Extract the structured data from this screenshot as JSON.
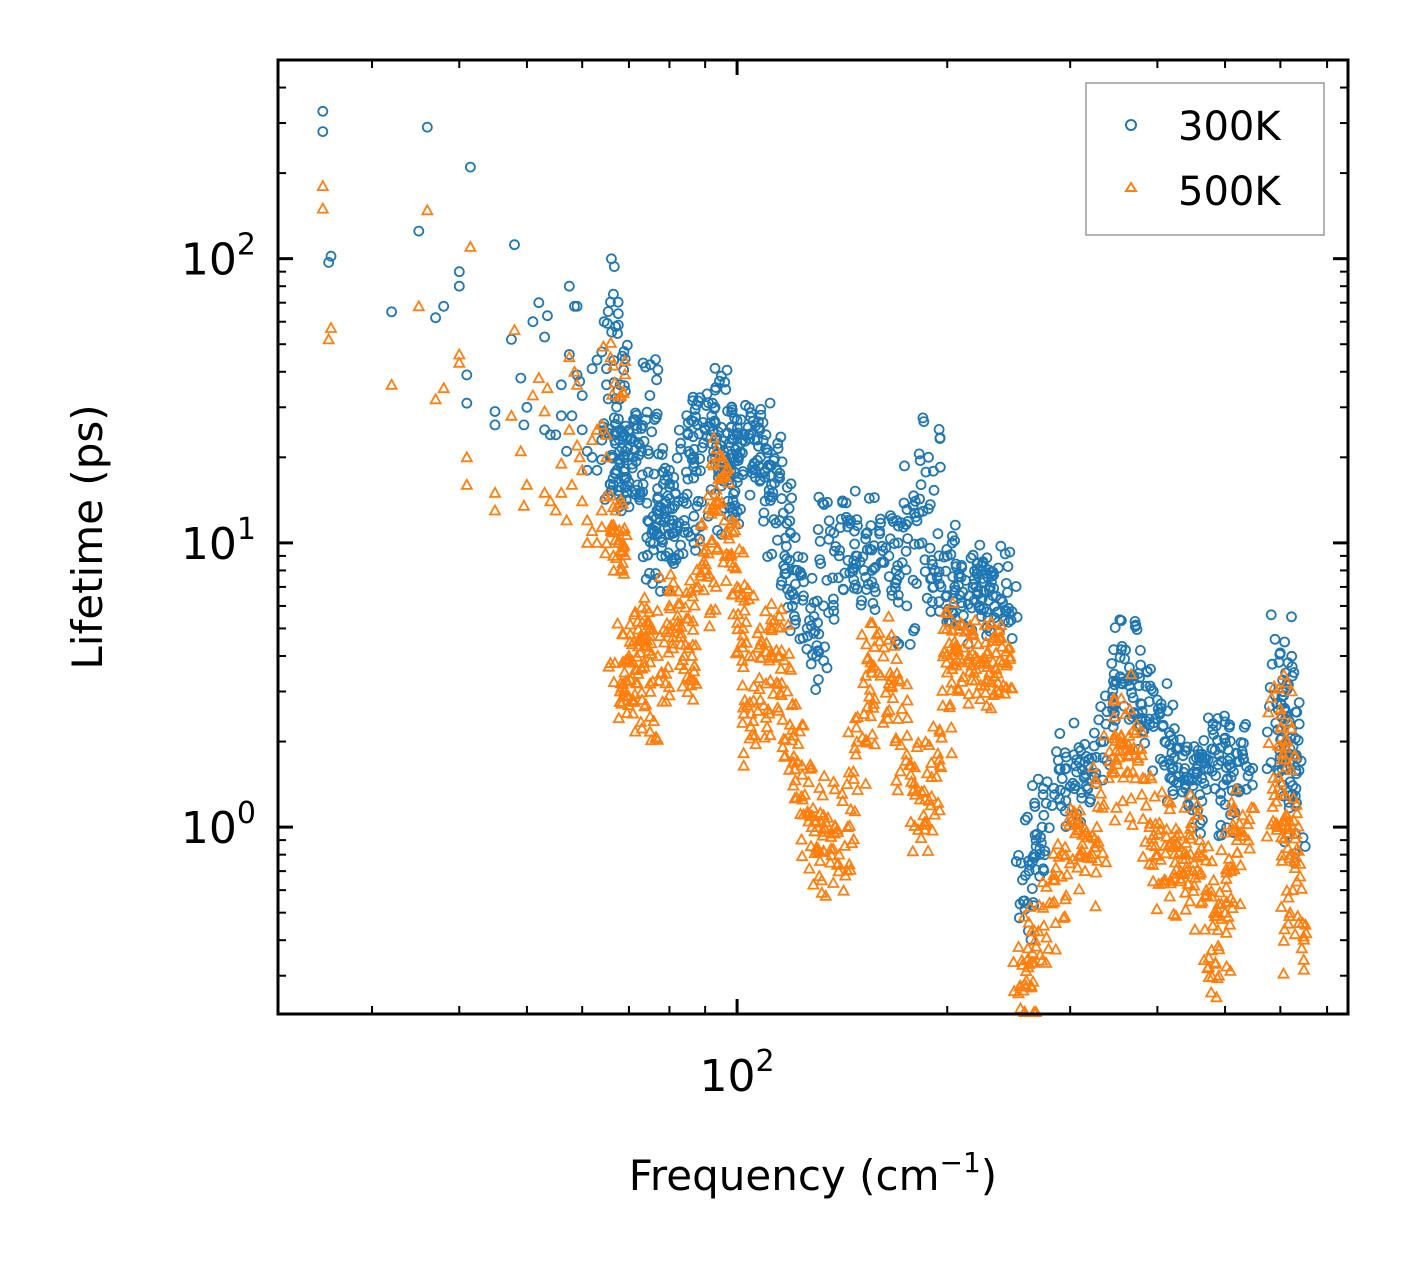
{
  "chart_data": {
    "type": "scatter",
    "title": "",
    "xlabel": "Frequency (cm",
    "xlabel_sup": "−1",
    "xlabel_end": ")",
    "ylabel": "Lifetime (ps)",
    "xscale": "log",
    "yscale": "log",
    "xlim": [
      22,
      750
    ],
    "ylim": [
      0.22,
      500
    ],
    "x_ticks": [
      {
        "base": "10",
        "exp": "2",
        "value": 100
      }
    ],
    "y_ticks": [
      {
        "base": "10",
        "exp": "0",
        "value": 1
      },
      {
        "base": "10",
        "exp": "1",
        "value": 10
      },
      {
        "base": "10",
        "exp": "2",
        "value": 100
      }
    ],
    "legend_position": "top-right",
    "series": [
      {
        "name": "300K",
        "marker": "circle",
        "color": "#1f77b4",
        "points": [
          [
            25.5,
            330
          ],
          [
            25.5,
            280
          ],
          [
            26,
            97
          ],
          [
            26.2,
            102
          ],
          [
            32,
            65
          ],
          [
            35,
            125
          ],
          [
            36,
            290
          ],
          [
            37,
            62
          ],
          [
            38,
            68
          ],
          [
            40,
            90
          ],
          [
            40,
            80
          ],
          [
            41,
            39
          ],
          [
            41,
            31
          ],
          [
            41.5,
            210
          ],
          [
            45,
            29
          ],
          [
            45,
            26
          ],
          [
            47.5,
            52
          ],
          [
            48,
            112
          ],
          [
            49,
            38
          ],
          [
            49.5,
            26
          ],
          [
            50,
            30
          ],
          [
            51,
            60
          ],
          [
            52,
            70
          ],
          [
            53,
            25
          ],
          [
            53,
            53
          ],
          [
            53.5,
            63
          ],
          [
            54,
            24
          ],
          [
            55,
            24
          ],
          [
            56,
            28
          ],
          [
            56,
            36
          ],
          [
            57,
            21
          ],
          [
            57.5,
            80
          ],
          [
            57.5,
            46
          ],
          [
            58,
            28
          ],
          [
            58.5,
            68
          ],
          [
            59,
            68
          ],
          [
            59,
            39
          ],
          [
            59.5,
            37
          ],
          [
            60,
            25
          ],
          [
            60,
            33
          ],
          [
            61,
            21
          ],
          [
            61,
            18
          ],
          [
            62,
            20
          ],
          [
            62,
            41
          ],
          [
            63,
            44
          ],
          [
            63,
            18
          ],
          [
            64,
            23
          ],
          [
            64,
            47
          ],
          [
            64.5,
            60
          ],
          [
            65,
            36
          ],
          [
            65,
            41
          ],
          [
            66,
            20
          ],
          [
            66.5,
            16
          ],
          [
            66.5,
            75
          ],
          [
            67,
            24
          ],
          [
            68,
            19
          ],
          [
            68,
            36
          ],
          [
            69,
            17
          ],
          [
            70,
            25
          ],
          [
            71,
            20
          ],
          [
            72,
            16
          ],
          [
            73,
            21
          ],
          [
            75,
            33
          ],
          [
            76,
            10
          ],
          [
            76,
            11
          ],
          [
            77,
            13
          ],
          [
            78,
            9
          ],
          [
            79,
            14
          ],
          [
            80,
            18
          ],
          [
            81,
            12
          ],
          [
            82,
            11
          ],
          [
            84,
            12
          ],
          [
            85,
            24
          ],
          [
            86,
            27
          ],
          [
            88,
            14
          ],
          [
            90,
            25
          ],
          [
            92,
            28
          ],
          [
            93,
            30
          ],
          [
            94,
            17
          ],
          [
            95,
            22
          ],
          [
            96,
            18
          ],
          [
            97,
            14
          ],
          [
            98,
            18
          ],
          [
            100,
            24
          ],
          [
            102,
            23
          ],
          [
            104,
            24
          ],
          [
            106,
            23
          ],
          [
            108,
            20
          ],
          [
            110,
            24
          ],
          [
            112,
            16
          ],
          [
            114,
            18
          ],
          [
            115,
            12
          ],
          [
            117,
            9
          ],
          [
            120,
            6
          ],
          [
            122,
            8
          ],
          [
            126,
            5
          ],
          [
            130,
            4
          ],
          [
            133,
            6
          ],
          [
            136,
            11
          ],
          [
            140,
            9
          ],
          [
            144,
            12
          ],
          [
            148,
            9
          ],
          [
            152,
            8
          ],
          [
            156,
            8
          ],
          [
            160,
            11
          ],
          [
            165,
            9
          ],
          [
            170,
            10
          ],
          [
            175,
            6
          ],
          [
            180,
            14
          ],
          [
            184,
            10
          ],
          [
            188,
            20
          ],
          [
            192,
            8
          ],
          [
            196,
            7
          ],
          [
            200,
            9
          ],
          [
            205,
            7
          ],
          [
            210,
            6
          ],
          [
            215,
            6.5
          ],
          [
            220,
            7
          ],
          [
            225,
            7.5
          ],
          [
            230,
            7
          ],
          [
            235,
            6.5
          ],
          [
            240,
            6.2
          ],
          [
            243,
            7.2
          ],
          [
            258,
            0.55
          ],
          [
            262,
            0.7
          ],
          [
            268,
            0.9
          ],
          [
            275,
            1.1
          ],
          [
            285,
            1.3
          ],
          [
            295,
            1.6
          ],
          [
            305,
            1.4
          ],
          [
            315,
            1.7
          ],
          [
            325,
            1.5
          ],
          [
            335,
            2.0
          ],
          [
            345,
            2.6
          ],
          [
            355,
            3.2
          ],
          [
            360,
            4.2
          ],
          [
            370,
            3.4
          ],
          [
            380,
            2.7
          ],
          [
            390,
            2.3
          ],
          [
            400,
            2.8
          ],
          [
            410,
            2.0
          ],
          [
            420,
            1.6
          ],
          [
            430,
            1.9
          ],
          [
            440,
            1.5
          ],
          [
            450,
            1.4
          ],
          [
            460,
            1.3
          ],
          [
            470,
            1.6
          ],
          [
            480,
            1.7
          ],
          [
            490,
            1.8
          ],
          [
            500,
            1.2
          ],
          [
            510,
            1.5
          ],
          [
            520,
            1.7
          ],
          [
            530,
            1.8
          ],
          [
            595,
            2.2
          ],
          [
            600,
            4.1
          ],
          [
            605,
            3.0
          ],
          [
            610,
            2.4
          ],
          [
            615,
            2.0
          ],
          [
            620,
            1.7
          ],
          [
            625,
            1.4
          ],
          [
            630,
            0.95
          ]
        ]
      },
      {
        "name": "500K",
        "marker": "triangle",
        "color": "#ff7f0e",
        "points": [
          [
            25.5,
            180
          ],
          [
            25.5,
            150
          ],
          [
            26,
            52
          ],
          [
            26.2,
            57
          ],
          [
            32,
            36
          ],
          [
            35,
            68
          ],
          [
            36,
            148
          ],
          [
            37,
            32
          ],
          [
            38,
            35
          ],
          [
            40,
            46
          ],
          [
            40,
            43
          ],
          [
            41,
            20
          ],
          [
            41,
            16
          ],
          [
            41.5,
            110
          ],
          [
            45,
            15
          ],
          [
            45,
            13
          ],
          [
            47.5,
            28
          ],
          [
            48,
            56
          ],
          [
            49,
            21
          ],
          [
            49.5,
            13.5
          ],
          [
            50,
            16
          ],
          [
            51,
            33
          ],
          [
            52,
            38
          ],
          [
            53,
            15
          ],
          [
            53,
            29
          ],
          [
            53.5,
            35
          ],
          [
            54,
            14
          ],
          [
            55,
            13
          ],
          [
            56,
            15
          ],
          [
            56,
            19
          ],
          [
            57,
            12
          ],
          [
            57.5,
            45
          ],
          [
            57.5,
            25
          ],
          [
            58,
            16
          ],
          [
            58.5,
            40
          ],
          [
            59,
            36
          ],
          [
            59,
            22
          ],
          [
            59.5,
            20
          ],
          [
            60,
            14
          ],
          [
            60,
            18
          ],
          [
            61,
            12
          ],
          [
            61,
            10
          ],
          [
            62,
            11
          ],
          [
            62,
            23
          ],
          [
            63,
            25
          ],
          [
            63,
            10
          ],
          [
            64,
            13
          ],
          [
            64,
            26
          ],
          [
            65,
            20
          ],
          [
            65,
            24
          ],
          [
            66,
            11
          ],
          [
            66.5,
            9
          ],
          [
            66.5,
            42
          ],
          [
            67,
            13
          ],
          [
            68,
            3
          ],
          [
            69,
            3.5
          ],
          [
            70,
            4
          ],
          [
            71,
            2.8
          ],
          [
            72,
            3.2
          ],
          [
            73,
            4.5
          ],
          [
            74,
            2.7
          ],
          [
            75,
            5
          ],
          [
            77,
            4
          ],
          [
            78,
            3.5
          ],
          [
            80,
            6
          ],
          [
            82,
            5
          ],
          [
            84,
            4
          ],
          [
            86,
            3.3
          ],
          [
            88,
            7
          ],
          [
            90,
            8
          ],
          [
            92,
            10
          ],
          [
            94,
            14
          ],
          [
            95,
            17
          ],
          [
            96,
            12
          ],
          [
            98,
            9
          ],
          [
            100,
            7
          ],
          [
            102,
            5
          ],
          [
            104,
            4
          ],
          [
            106,
            2.1
          ],
          [
            108,
            2.8
          ],
          [
            110,
            3.2
          ],
          [
            112,
            5
          ],
          [
            115,
            4
          ],
          [
            118,
            3
          ],
          [
            120,
            2.2
          ],
          [
            122,
            1.7
          ],
          [
            125,
            1.3
          ],
          [
            128,
            1.0
          ],
          [
            130,
            0.85
          ],
          [
            133,
            1.1
          ],
          [
            136,
            0.75
          ],
          [
            140,
            0.8
          ],
          [
            144,
            1.0
          ],
          [
            148,
            1.8
          ],
          [
            152,
            2.5
          ],
          [
            156,
            3.5
          ],
          [
            160,
            4.5
          ],
          [
            165,
            3.2
          ],
          [
            170,
            2.4
          ],
          [
            175,
            1.8
          ],
          [
            180,
            1.3
          ],
          [
            185,
            1.1
          ],
          [
            190,
            1.5
          ],
          [
            195,
            2.2
          ],
          [
            200,
            3.5
          ],
          [
            205,
            4.5
          ],
          [
            210,
            3.8
          ],
          [
            215,
            4.0
          ],
          [
            220,
            3.6
          ],
          [
            225,
            3.9
          ],
          [
            230,
            3.5
          ],
          [
            235,
            4.1
          ],
          [
            240,
            3.8
          ],
          [
            243,
            3.7
          ],
          [
            258,
            0.28
          ],
          [
            262,
            0.33
          ],
          [
            268,
            0.38
          ],
          [
            275,
            0.45
          ],
          [
            285,
            0.65
          ],
          [
            295,
            0.85
          ],
          [
            305,
            0.95
          ],
          [
            315,
            0.7
          ],
          [
            325,
            0.85
          ],
          [
            335,
            1.2
          ],
          [
            345,
            1.6
          ],
          [
            355,
            2.1
          ],
          [
            360,
            2.5
          ],
          [
            370,
            1.9
          ],
          [
            380,
            1.3
          ],
          [
            390,
            1.0
          ],
          [
            400,
            0.8
          ],
          [
            410,
            0.65
          ],
          [
            420,
            0.85
          ],
          [
            430,
            0.95
          ],
          [
            440,
            0.8
          ],
          [
            450,
            0.7
          ],
          [
            460,
            0.9
          ],
          [
            470,
            0.6
          ],
          [
            480,
            0.45
          ],
          [
            490,
            0.3
          ],
          [
            500,
            0.5
          ],
          [
            510,
            0.7
          ],
          [
            520,
            0.9
          ],
          [
            530,
            1.1
          ],
          [
            595,
            1.0
          ],
          [
            600,
            2.6
          ],
          [
            605,
            1.8
          ],
          [
            610,
            1.3
          ],
          [
            615,
            1.0
          ],
          [
            620,
            0.8
          ],
          [
            625,
            0.6
          ],
          [
            630,
            0.42
          ]
        ]
      }
    ]
  }
}
